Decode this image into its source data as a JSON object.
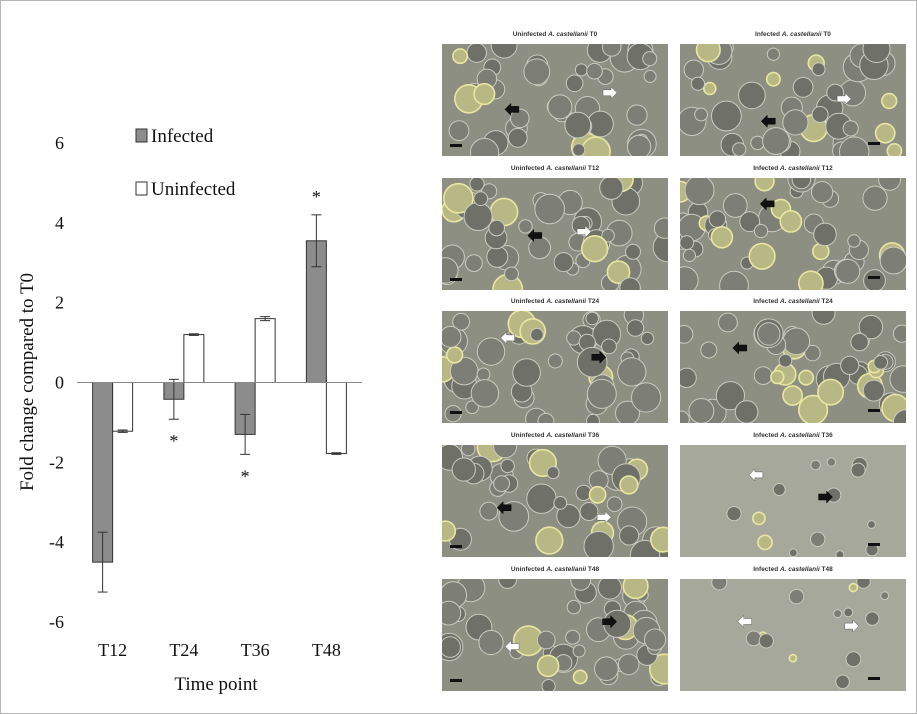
{
  "chart_data": {
    "type": "bar",
    "categories": [
      "T12",
      "T24",
      "T36",
      "T48"
    ],
    "series": [
      {
        "name": "Infected",
        "values": [
          -4.5,
          -0.42,
          -1.3,
          3.55
        ],
        "errors": [
          0.75,
          0.5,
          0.5,
          0.65
        ],
        "significant": [
          false,
          true,
          true,
          true
        ],
        "color": "#8c8c8c"
      },
      {
        "name": "Uninfected",
        "values": [
          -1.22,
          1.2,
          1.6,
          -1.78
        ],
        "errors": [
          0.03,
          0.02,
          0.05,
          0.02
        ],
        "color": "#ffffff"
      }
    ],
    "xlabel": "Time point",
    "ylabel": "Fold change compared to T0",
    "ylim": [
      -6,
      6
    ],
    "yticks": [
      -6,
      -4,
      -2,
      0,
      2,
      4,
      6
    ],
    "significance_marker": "*",
    "legend_position": "top-left",
    "grid": false
  },
  "micrographs": [
    {
      "prefix": "Uninfected ",
      "species": "A. castellanii",
      "time": " T0",
      "arrows": [
        "black",
        "white"
      ]
    },
    {
      "prefix": "Infected ",
      "species": "A. castellanii",
      "time": " T0",
      "arrows": [
        "black",
        "white"
      ]
    },
    {
      "prefix": "Uninfected ",
      "species": "A. castellanii",
      "time": " T12",
      "arrows": [
        "black",
        "white"
      ]
    },
    {
      "prefix": "Infected ",
      "species": "A. castellanii",
      "time": " T12",
      "arrows": [
        "black"
      ]
    },
    {
      "prefix": "Uninfected ",
      "species": "A. castellanii",
      "time": " T24",
      "arrows": [
        "white",
        "black"
      ]
    },
    {
      "prefix": "Infected ",
      "species": "A. castellanii",
      "time": " T24",
      "arrows": [
        "black"
      ]
    },
    {
      "prefix": "Uninfected ",
      "species": "A. castellanii",
      "time": " T36",
      "arrows": [
        "black",
        "white"
      ]
    },
    {
      "prefix": "Infected ",
      "species": "A. castellanii",
      "time": " T36",
      "arrows": [
        "white",
        "black"
      ]
    },
    {
      "prefix": "Uninfected ",
      "species": "A. castellanii",
      "time": " T48",
      "arrows": [
        "white",
        "black"
      ]
    },
    {
      "prefix": "Infected ",
      "species": "A. castellanii",
      "time": " T48",
      "arrows": [
        "white",
        "white"
      ]
    }
  ]
}
